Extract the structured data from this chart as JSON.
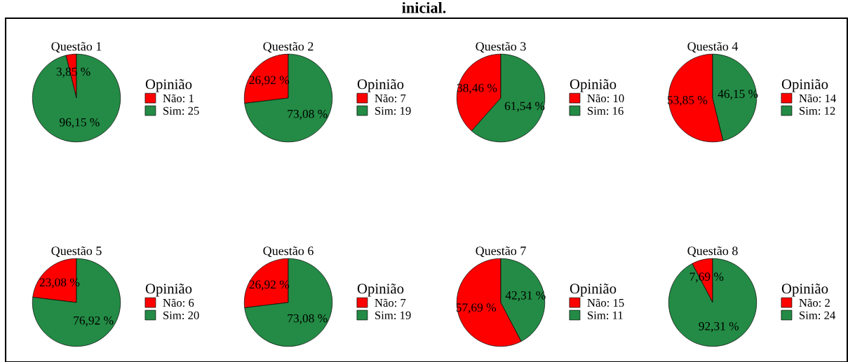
{
  "chart_data": [
    {
      "type": "pie",
      "title": "Questão 1",
      "legend_title": "Opinião",
      "legend": "right",
      "annotations": [
        "inicial."
      ],
      "categories": [
        "Não: 1",
        "Sim: 25"
      ],
      "values": [
        3.85,
        96.15
      ],
      "colors": [
        "#ff0000",
        "#238b45"
      ],
      "value_labels": [
        "3,85 %",
        "96,15 %"
      ]
    },
    {
      "type": "pie",
      "title": "Questão 2",
      "legend_title": "Opinião",
      "legend": "right",
      "categories": [
        "Não: 7",
        "Sim: 19"
      ],
      "values": [
        26.92,
        73.08
      ],
      "colors": [
        "#ff0000",
        "#238b45"
      ],
      "value_labels": [
        "26,92 %",
        "73,08 %"
      ]
    },
    {
      "type": "pie",
      "title": "Questão 3",
      "legend_title": "Opinião",
      "legend": "right",
      "categories": [
        "Não: 10",
        "Sim: 16"
      ],
      "values": [
        38.46,
        61.54
      ],
      "colors": [
        "#ff0000",
        "#238b45"
      ],
      "value_labels": [
        "38,46 %",
        "61,54 %"
      ]
    },
    {
      "type": "pie",
      "title": "Questão 4",
      "legend_title": "Opinião",
      "legend": "right",
      "categories": [
        "Não: 14",
        "Sim: 12"
      ],
      "values": [
        53.85,
        46.15
      ],
      "colors": [
        "#ff0000",
        "#238b45"
      ],
      "value_labels": [
        "53,85 %",
        "46,15 %"
      ]
    },
    {
      "type": "pie",
      "title": "Questão 5",
      "legend_title": "Opinião",
      "legend": "right",
      "categories": [
        "Não: 6",
        "Sim: 20"
      ],
      "values": [
        23.08,
        76.92
      ],
      "colors": [
        "#ff0000",
        "#238b45"
      ],
      "value_labels": [
        "23,08 %",
        "76,92 %"
      ]
    },
    {
      "type": "pie",
      "title": "Questão 6",
      "legend_title": "Opinião",
      "legend": "right",
      "categories": [
        "Não: 7",
        "Sim: 19"
      ],
      "values": [
        26.92,
        73.08
      ],
      "colors": [
        "#ff0000",
        "#238b45"
      ],
      "value_labels": [
        "26,92 %",
        "73,08 %"
      ]
    },
    {
      "type": "pie",
      "title": "Questão 7",
      "legend_title": "Opinião",
      "legend": "right",
      "categories": [
        "Não: 15",
        "Sim: 11"
      ],
      "values": [
        57.69,
        42.31
      ],
      "colors": [
        "#ff0000",
        "#238b45"
      ],
      "value_labels": [
        "57,69 %",
        "42,31 %"
      ]
    },
    {
      "type": "pie",
      "title": "Questão 8",
      "legend_title": "Opinião",
      "legend": "right",
      "categories": [
        "Não: 2",
        "Sim: 24"
      ],
      "values": [
        7.69,
        92.31
      ],
      "colors": [
        "#ff0000",
        "#238b45"
      ],
      "value_labels": [
        "7,69 %",
        "92,31 %"
      ]
    }
  ]
}
